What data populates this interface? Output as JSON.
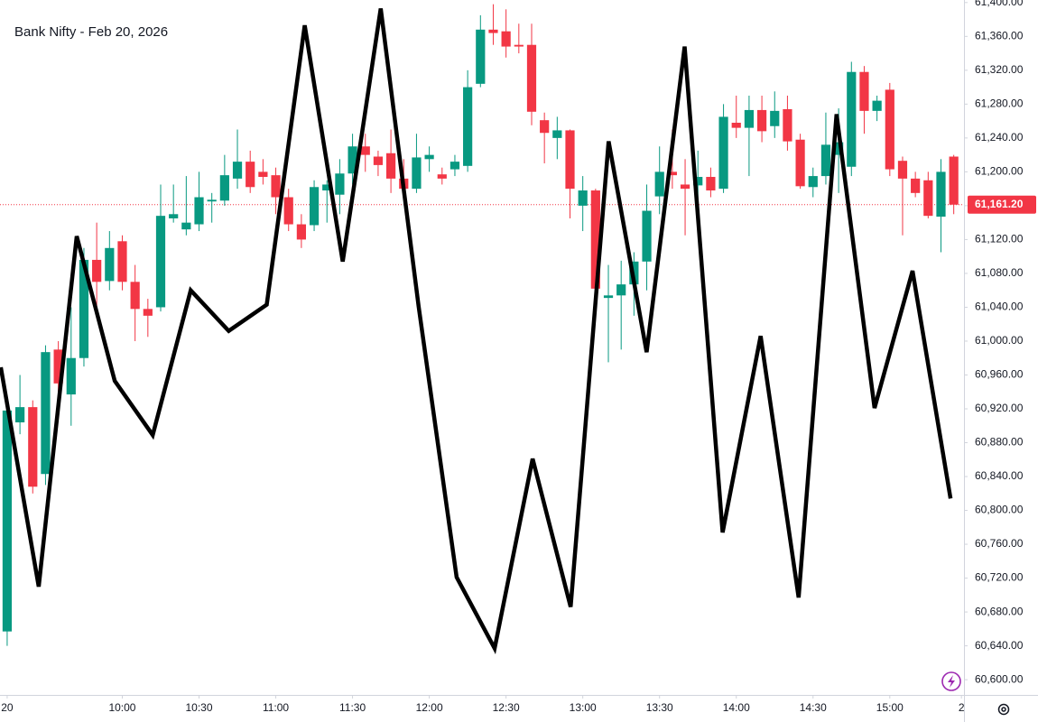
{
  "chart_data": {
    "type": "candlestick",
    "title": "Bank Nifty - Feb 20, 2026",
    "up_color": "#089981",
    "down_color": "#f23645",
    "open": [
      60657,
      60904,
      60922,
      60843,
      60990,
      60937,
      60980,
      61096,
      61071,
      61118,
      61070,
      61038,
      61040,
      61145,
      61132,
      61138,
      61165,
      61166,
      61192,
      61212,
      61200,
      61196,
      61170,
      61138,
      61137,
      61178,
      61173,
      61198,
      61230,
      61218,
      61222,
      61192,
      61180,
      61215,
      61197,
      61203,
      61207,
      61304,
      61368,
      61366,
      61350,
      61350,
      61261,
      61240,
      61249,
      61160,
      61178,
      61051,
      61054,
      61067,
      61094,
      61171,
      61200,
      61185,
      61184,
      61194,
      61180,
      61258,
      61252,
      61273,
      61254,
      61274,
      61238,
      61182,
      61195,
      61220,
      61206,
      61318,
      61272,
      61297,
      61213,
      61192,
      61190,
      61147,
      61218
    ],
    "high": [
      60920,
      60960,
      60930,
      60995,
      61000,
      61040,
      61110,
      61140,
      61130,
      61125,
      61090,
      61050,
      61185,
      61185,
      61195,
      61200,
      61175,
      61220,
      61250,
      61225,
      61215,
      61205,
      61180,
      61150,
      61190,
      61190,
      61215,
      61245,
      61245,
      61225,
      61250,
      61215,
      61245,
      61230,
      61205,
      61220,
      61320,
      61385,
      61398,
      61392,
      61375,
      61375,
      61270,
      61265,
      61250,
      61195,
      61180,
      61090,
      61095,
      61105,
      61185,
      61230,
      61250,
      61215,
      61225,
      61205,
      61280,
      61290,
      61290,
      61290,
      61295,
      61290,
      61245,
      61205,
      61270,
      61275,
      61330,
      61325,
      61290,
      61305,
      61218,
      61200,
      61200,
      61215,
      61220
    ],
    "low": [
      60640,
      60890,
      60820,
      60830,
      60920,
      60900,
      60970,
      61040,
      61060,
      61060,
      61000,
      61005,
      61035,
      61140,
      61125,
      61130,
      61140,
      61160,
      61180,
      61175,
      61185,
      61150,
      61130,
      61110,
      61130,
      61140,
      61150,
      61185,
      61200,
      61195,
      61175,
      61170,
      61175,
      61200,
      61185,
      61195,
      61200,
      61300,
      61350,
      61335,
      61340,
      61255,
      61210,
      61215,
      61145,
      61130,
      61055,
      60975,
      60990,
      61030,
      61060,
      61150,
      61180,
      61125,
      61160,
      61170,
      61175,
      61240,
      61195,
      61235,
      61240,
      61225,
      61180,
      61170,
      61185,
      61175,
      61195,
      61245,
      61260,
      61195,
      61125,
      61170,
      61145,
      61105,
      61150
    ],
    "close": [
      60918,
      60922,
      60828,
      60987,
      60950,
      60980,
      61096,
      61070,
      61110,
      61070,
      61038,
      61030,
      61148,
      61150,
      61140,
      61170,
      61167,
      61196,
      61212,
      61182,
      61194,
      61170,
      61138,
      61120,
      61182,
      61185,
      61198,
      61230,
      61220,
      61208,
      61192,
      61180,
      61217,
      61220,
      61192,
      61212,
      61300,
      61368,
      61364,
      61348,
      61348,
      61271,
      61246,
      61249,
      61180,
      61178,
      61062,
      61054,
      61067,
      61094,
      61154,
      61200,
      61196,
      61180,
      61194,
      61178,
      61265,
      61252,
      61273,
      61248,
      61272,
      61236,
      61183,
      61195,
      61232,
      61235,
      61318,
      61272,
      61284,
      61203,
      61192,
      61175,
      61148,
      61200,
      61161.2
    ],
    "line": {
      "color": "#000000",
      "x": [
        -0.5,
        2.47,
        5.44,
        8.41,
        11.38,
        14.35,
        17.32,
        20.29,
        23.26,
        26.23,
        29.2,
        32.17,
        35.14,
        38.11,
        41.08,
        44.05,
        47.02,
        49.99,
        52.96,
        55.93,
        58.9,
        61.87,
        64.84,
        67.81,
        70.78,
        73.75
      ],
      "values": [
        60969,
        60710,
        61124,
        60953,
        60889,
        61060,
        61012,
        61043,
        61373,
        61094,
        61393,
        61041,
        60721,
        60637,
        60861,
        60686,
        61236,
        60987,
        61348,
        60774,
        61006,
        60697,
        61268,
        60921,
        61083,
        60814
      ]
    },
    "last_price": {
      "value": 61161.2,
      "label": "61,161.20"
    },
    "xlim": [
      -0.56,
      74.8
    ],
    "ylim": [
      60582,
      61403
    ],
    "xticks": [
      {
        "value": 0,
        "label": "20"
      },
      {
        "value": 9,
        "label": "10:00"
      },
      {
        "value": 15,
        "label": "10:30"
      },
      {
        "value": 21,
        "label": "11:00"
      },
      {
        "value": 27,
        "label": "11:30"
      },
      {
        "value": 33,
        "label": "12:00"
      },
      {
        "value": 39,
        "label": "12:30"
      },
      {
        "value": 45,
        "label": "13:00"
      },
      {
        "value": 51,
        "label": "13:30"
      },
      {
        "value": 57,
        "label": "14:00"
      },
      {
        "value": 63,
        "label": "14:30"
      },
      {
        "value": 69,
        "label": "15:00"
      },
      {
        "value": 74.6,
        "label": "2"
      }
    ],
    "yticks": [
      {
        "value": 60600,
        "label": "60,600.00"
      },
      {
        "value": 60640,
        "label": "60,640.00"
      },
      {
        "value": 60680,
        "label": "60,680.00"
      },
      {
        "value": 60720,
        "label": "60,720.00"
      },
      {
        "value": 60760,
        "label": "60,760.00"
      },
      {
        "value": 60800,
        "label": "60,800.00"
      },
      {
        "value": 60840,
        "label": "60,840.00"
      },
      {
        "value": 60880,
        "label": "60,880.00"
      },
      {
        "value": 60920,
        "label": "60,920.00"
      },
      {
        "value": 60960,
        "label": "60,960.00"
      },
      {
        "value": 61000,
        "label": "61,000.00"
      },
      {
        "value": 61040,
        "label": "61,040.00"
      },
      {
        "value": 61080,
        "label": "61,080.00"
      },
      {
        "value": 61120,
        "label": "61,120.00"
      },
      {
        "value": 61160,
        "label": "61,160.00"
      },
      {
        "value": 61200,
        "label": "61,200.00"
      },
      {
        "value": 61240,
        "label": "61,240.00"
      },
      {
        "value": 61280,
        "label": "61,280.00"
      },
      {
        "value": 61320,
        "label": "61,320.00"
      },
      {
        "value": 61360,
        "label": "61,360.00"
      },
      {
        "value": 61400,
        "label": "61,400.00"
      }
    ]
  }
}
